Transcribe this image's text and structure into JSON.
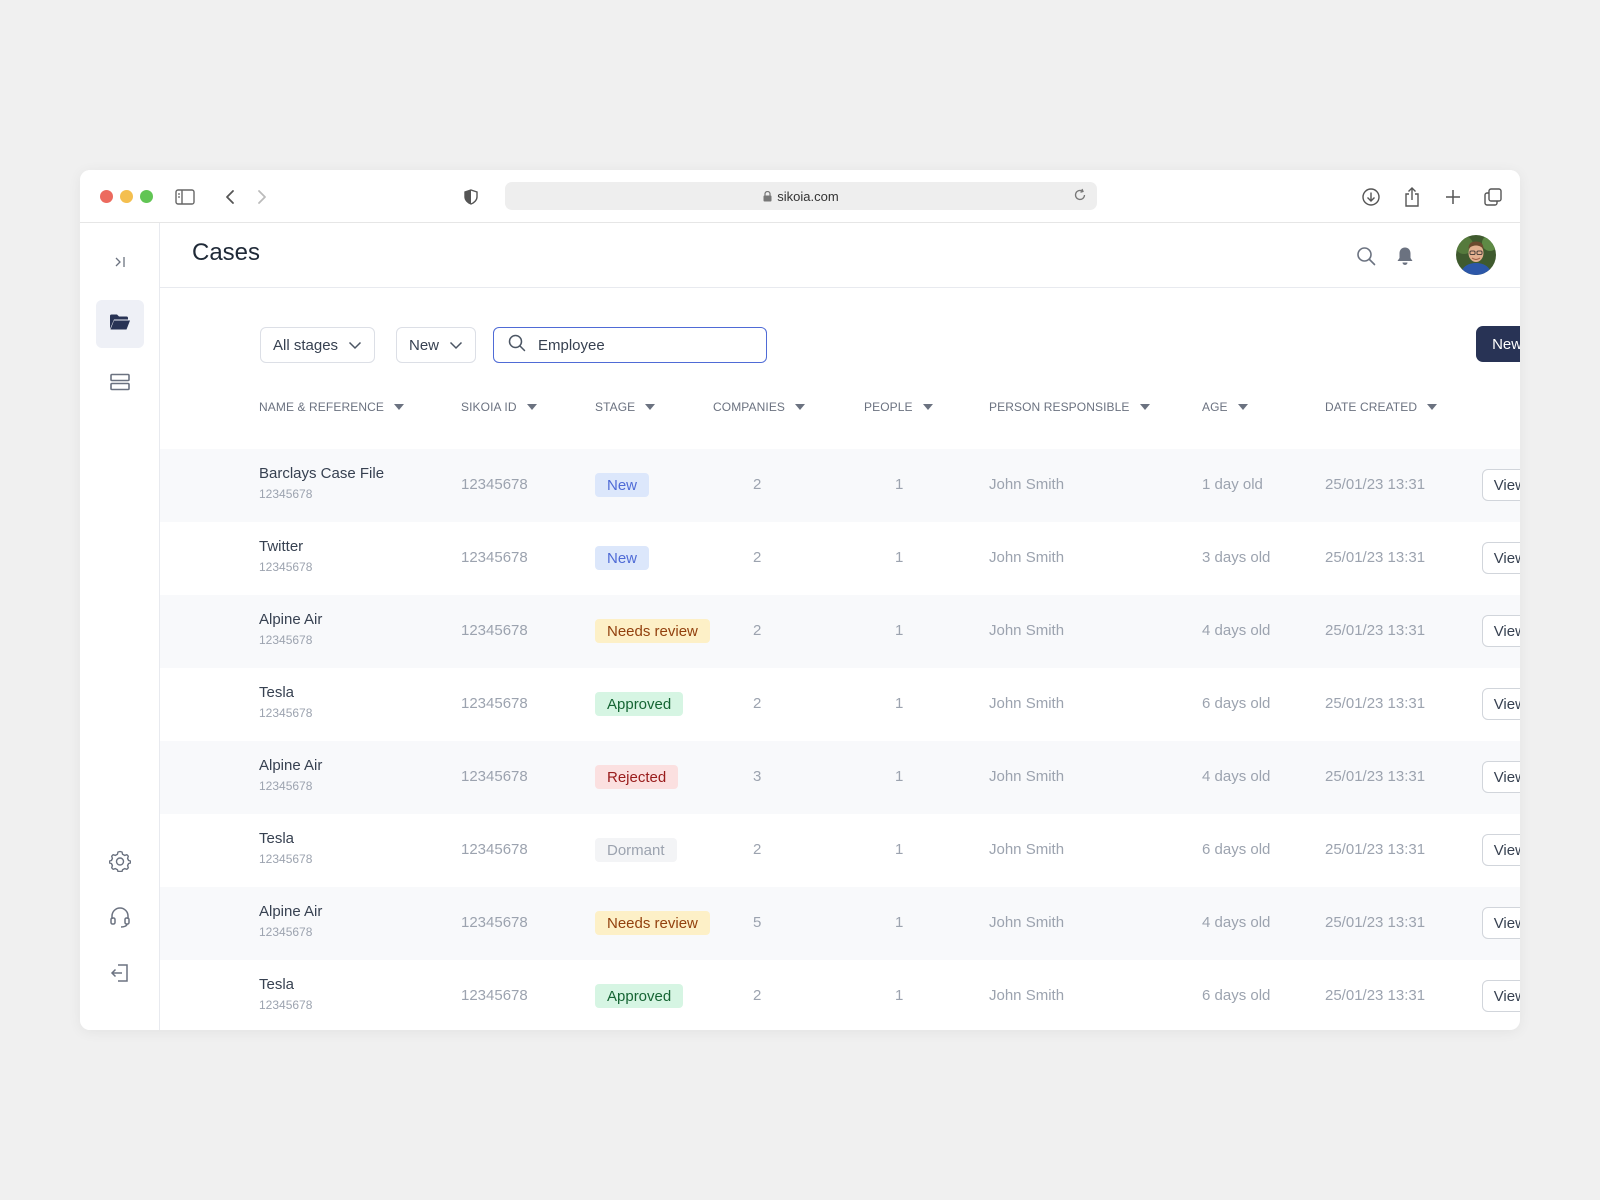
{
  "browser": {
    "url": "sikoia.com"
  },
  "header": {
    "title": "Cases"
  },
  "filters": {
    "stage_label": "All stages",
    "status_label": "New",
    "search_value": "Employee"
  },
  "actions": {
    "new_case_label": "New case",
    "view_more_label": "View more"
  },
  "table": {
    "columns": [
      "NAME & REFERENCE",
      "SIKOIA ID",
      "STAGE",
      "COMPANIES",
      "PEOPLE",
      "PERSON RESPONSIBLE",
      "AGE",
      "DATE CREATED"
    ],
    "rows": [
      {
        "name": "Barclays Case File",
        "ref": "12345678",
        "sikoia_id": "12345678",
        "stage": "New",
        "stage_type": "new",
        "companies": "2",
        "people": "1",
        "person": "John Smith",
        "age": "1 day old",
        "date": "25/01/23 13:31"
      },
      {
        "name": "Twitter",
        "ref": "12345678",
        "sikoia_id": "12345678",
        "stage": "New",
        "stage_type": "new",
        "companies": "2",
        "people": "1",
        "person": "John Smith",
        "age": "3 days old",
        "date": "25/01/23 13:31"
      },
      {
        "name": "Alpine Air",
        "ref": "12345678",
        "sikoia_id": "12345678",
        "stage": "Needs review",
        "stage_type": "review",
        "companies": "2",
        "people": "1",
        "person": "John Smith",
        "age": "4 days old",
        "date": "25/01/23 13:31"
      },
      {
        "name": "Tesla",
        "ref": "12345678",
        "sikoia_id": "12345678",
        "stage": "Approved",
        "stage_type": "approved",
        "companies": "2",
        "people": "1",
        "person": "John Smith",
        "age": "6 days old",
        "date": "25/01/23 13:31"
      },
      {
        "name": "Alpine Air",
        "ref": "12345678",
        "sikoia_id": "12345678",
        "stage": "Rejected",
        "stage_type": "rejected",
        "companies": "3",
        "people": "1",
        "person": "John Smith",
        "age": "4 days old",
        "date": "25/01/23 13:31"
      },
      {
        "name": "Tesla",
        "ref": "12345678",
        "sikoia_id": "12345678",
        "stage": "Dormant",
        "stage_type": "dormant",
        "companies": "2",
        "people": "1",
        "person": "John Smith",
        "age": "6 days old",
        "date": "25/01/23 13:31"
      },
      {
        "name": "Alpine Air",
        "ref": "12345678",
        "sikoia_id": "12345678",
        "stage": "Needs review",
        "stage_type": "review",
        "companies": "5",
        "people": "1",
        "person": "John Smith",
        "age": "4 days old",
        "date": "25/01/23 13:31"
      },
      {
        "name": "Tesla",
        "ref": "12345678",
        "sikoia_id": "12345678",
        "stage": "Approved",
        "stage_type": "approved",
        "companies": "2",
        "people": "1",
        "person": "John Smith",
        "age": "6 days old",
        "date": "25/01/23 13:31"
      }
    ]
  },
  "icons": {
    "sidebar": [
      "expand-sidebar-icon",
      "folder-icon",
      "list-icon",
      "settings-icon",
      "headset-icon",
      "logout-icon"
    ],
    "topbar": [
      "search-icon",
      "bell-icon",
      "avatar"
    ]
  },
  "colors": {
    "primary": "#283355",
    "accent": "#4f6bd6"
  }
}
